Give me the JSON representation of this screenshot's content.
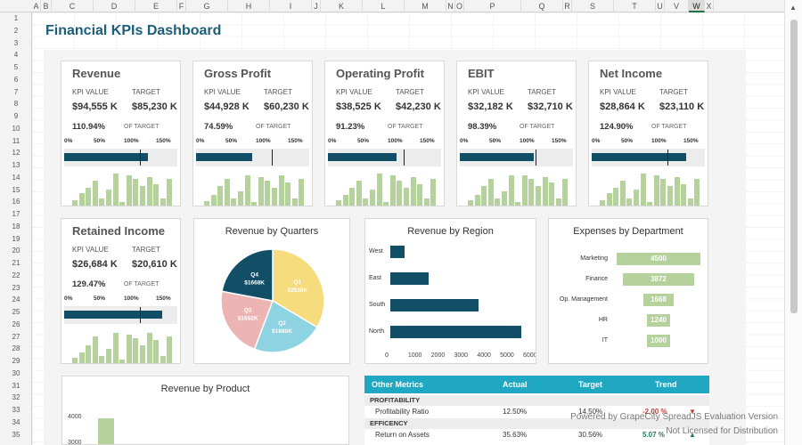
{
  "columns": [
    "A",
    "B",
    "C",
    "D",
    "E",
    "F",
    "G",
    "H",
    "I",
    "J",
    "K",
    "L",
    "M",
    "N",
    "O",
    "P",
    "Q",
    "R",
    "S",
    "T",
    "U",
    "V",
    "W",
    "X"
  ],
  "selected_column": "W",
  "rows": [
    "1",
    "2",
    "3",
    "4",
    "5",
    "6",
    "7",
    "8",
    "9",
    "10",
    "11",
    "12",
    "13",
    "14",
    "15",
    "16",
    "17",
    "18",
    "19",
    "20",
    "21",
    "22",
    "23",
    "24",
    "25",
    "26",
    "27",
    "28",
    "29",
    "30",
    "31",
    "32",
    "33",
    "34",
    "35"
  ],
  "dashboard": {
    "title": "Financial KPIs Dashboard"
  },
  "kpi_labels": {
    "kpi_value": "KPI VALUE",
    "target": "TARGET",
    "of_target": "OF TARGET"
  },
  "kpi_ticks": [
    "0%",
    "50%",
    "100%",
    "150%"
  ],
  "kpis": [
    {
      "title": "Revenue",
      "value": "$94,555 K",
      "target": "$85,230 K",
      "pct": "110.94%",
      "fill": 1.1094
    },
    {
      "title": "Gross Profit",
      "value": "$44,928 K",
      "target": "$60,230 K",
      "pct": "74.59%",
      "fill": 0.7459
    },
    {
      "title": "Operating Profit",
      "value": "$38,525 K",
      "target": "$42,230 K",
      "pct": "91.23%",
      "fill": 0.9123
    },
    {
      "title": "EBIT",
      "value": "$32,182 K",
      "target": "$32,710 K",
      "pct": "98.39%",
      "fill": 0.9839
    },
    {
      "title": "Net Income",
      "value": "$28,864 K",
      "target": "$23,110 K",
      "pct": "124.90%",
      "fill": 1.249
    },
    {
      "title": "Retained Income",
      "value": "$26,684 K",
      "target": "$20,610 K",
      "pct": "129.47%",
      "fill": 1.2947
    }
  ],
  "pie": {
    "title": "Revenue by Quarters",
    "colors": [
      "#f7dc7e",
      "#8dd3e1",
      "#edb4b4",
      "#124e66"
    ],
    "slices": [
      {
        "label": "Q1",
        "value_label": "$2538K",
        "value": 2538
      },
      {
        "label": "Q2",
        "value_label": "$1680K",
        "value": 1680
      },
      {
        "label": "Q3",
        "value_label": "$1682K",
        "value": 1682
      },
      {
        "label": "Q4",
        "value_label": "$1668K",
        "value": 1668
      }
    ]
  },
  "region": {
    "title": "Revenue by Region",
    "categories": [
      "West",
      "East",
      "South",
      "North"
    ],
    "values": [
      600,
      1650,
      3850,
      5700
    ],
    "ticks": [
      "0",
      "1000",
      "2000",
      "3000",
      "4000",
      "5000",
      "6000"
    ],
    "max": 6000
  },
  "expenses": {
    "title": "Expenses by Department",
    "categories": [
      "Marketing",
      "Finance",
      "Op. Management",
      "HR",
      "IT"
    ],
    "values": [
      4500,
      3872,
      1668,
      1240,
      1000
    ],
    "labels": [
      "4500",
      "3872",
      "1668",
      "1240",
      "1000"
    ],
    "max": 4500
  },
  "product": {
    "title": "Revenue by Product",
    "ticks": [
      "4000",
      "3000"
    ],
    "values": [
      4000
    ]
  },
  "metrics": {
    "header": {
      "col1": "Other Metrics",
      "col2": "Actual",
      "col3": "Target",
      "col4": "Trend"
    },
    "sections": [
      {
        "name": "PROFITABILITY",
        "row": {
          "name": "Profitability Ratio",
          "actual": "12.50%",
          "target": "14.50%",
          "trend": "-2.00 %",
          "arrow": "▼"
        }
      },
      {
        "name": "EFFICENCY",
        "row": {
          "name": "Return on Assets",
          "actual": "35.63%",
          "target": "30.56%",
          "trend": "5.07 %",
          "arrow": "▲"
        }
      }
    ]
  },
  "watermark": {
    "line1": "Powered by GrapeCity SpreadJS Evaluation Version",
    "line2": "Not Licensed for Distribution"
  },
  "colors": {
    "accent": "#124e66",
    "bar_green": "#b5d19c",
    "table_header": "#20a8c3",
    "title": "#1b5e7a",
    "trend_down": "#c0392b",
    "trend_up": "#1e7b52"
  }
}
